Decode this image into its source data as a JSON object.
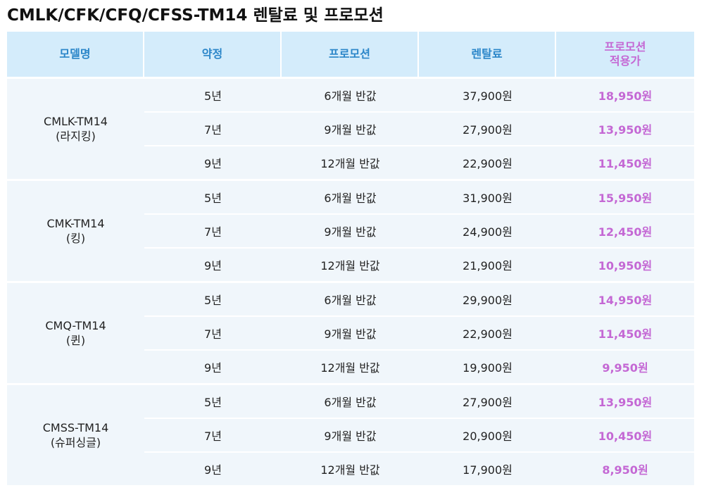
{
  "title": "CMLK/CFK/CFQ/CFSS-TM14 렌탈료 및 프로모션",
  "headers": {
    "model": "모델명",
    "contract": "약정",
    "promotion": "프로모션",
    "fee": "렌탈료",
    "promo_applied_line1": "프로모션",
    "promo_applied_line2": "적용가"
  },
  "colors": {
    "header_bg": "#d4ecfb",
    "header_text": "#2b86c9",
    "promo_text": "#c468d4",
    "row_bg": "#f0f6fb"
  },
  "groups": [
    {
      "model_line1": "CMLK-TM14",
      "model_line2": "(라지킹)",
      "rows": [
        {
          "contract": "5년",
          "promotion": "6개월 반값",
          "fee": "37,900원",
          "promo_price": "18,950원"
        },
        {
          "contract": "7년",
          "promotion": "9개월 반값",
          "fee": "27,900원",
          "promo_price": "13,950원"
        },
        {
          "contract": "9년",
          "promotion": "12개월 반값",
          "fee": "22,900원",
          "promo_price": "11,450원"
        }
      ]
    },
    {
      "model_line1": "CMK-TM14",
      "model_line2": "(킹)",
      "rows": [
        {
          "contract": "5년",
          "promotion": "6개월 반값",
          "fee": "31,900원",
          "promo_price": "15,950원"
        },
        {
          "contract": "7년",
          "promotion": "9개월 반값",
          "fee": "24,900원",
          "promo_price": "12,450원"
        },
        {
          "contract": "9년",
          "promotion": "12개월 반값",
          "fee": "21,900원",
          "promo_price": "10,950원"
        }
      ]
    },
    {
      "model_line1": "CMQ-TM14",
      "model_line2": "(퀸)",
      "rows": [
        {
          "contract": "5년",
          "promotion": "6개월 반값",
          "fee": "29,900원",
          "promo_price": "14,950원"
        },
        {
          "contract": "7년",
          "promotion": "9개월 반값",
          "fee": "22,900원",
          "promo_price": "11,450원"
        },
        {
          "contract": "9년",
          "promotion": "12개월 반값",
          "fee": "19,900원",
          "promo_price": "9,950원"
        }
      ]
    },
    {
      "model_line1": "CMSS-TM14",
      "model_line2": "(슈퍼싱글)",
      "rows": [
        {
          "contract": "5년",
          "promotion": "6개월 반값",
          "fee": "27,900원",
          "promo_price": "13,950원"
        },
        {
          "contract": "7년",
          "promotion": "9개월 반값",
          "fee": "20,900원",
          "promo_price": "10,450원"
        },
        {
          "contract": "9년",
          "promotion": "12개월 반값",
          "fee": "17,900원",
          "promo_price": "8,950원"
        }
      ]
    }
  ]
}
